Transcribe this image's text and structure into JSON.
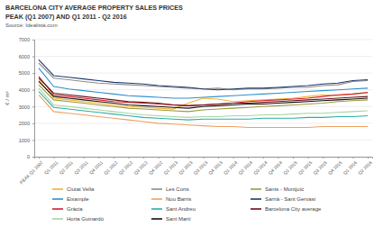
{
  "chart_data": {
    "type": "line",
    "title": "BARCELONA CITY AVERAGE PROPERTY SALES PRICES",
    "subtitle": "PEAK (Q1 2007) AND Q1 2011 - Q2 2016",
    "source": "Source: Idealista.com",
    "y_label": "€ / m²",
    "categories": [
      "PEAK Q1 2007",
      "Q1 2011",
      "Q2 2011",
      "Q3 2011",
      "Q4 2011",
      "Q1 2012",
      "Q2 2012",
      "Q3 2012",
      "Q4 2012",
      "Q1 2013",
      "Q2 2013",
      "Q3 2013",
      "Q4 2013",
      "Q1 2014",
      "Q2 2014",
      "Q3 2014",
      "Q4 2014",
      "Q1 2015",
      "Q2 2015",
      "Q3 2015",
      "Q4 2015",
      "Q1 2016",
      "Q2 2016"
    ],
    "series": [
      {
        "name": "Ciutat Vella",
        "color": "#f2b232",
        "values": [
          4600,
          3500,
          3400,
          3300,
          3200,
          3100,
          3000,
          2950,
          2900,
          2850,
          3200,
          3500,
          3450,
          3300,
          3350,
          3400,
          3450,
          3500,
          3600,
          3700,
          3650,
          3750,
          3800
        ]
      },
      {
        "name": "Les Corts",
        "color": "#8c8c8c",
        "values": [
          5600,
          4700,
          4600,
          4500,
          4400,
          4350,
          4300,
          4250,
          4200,
          4150,
          4100,
          4050,
          4100,
          4000,
          4050,
          4050,
          4100,
          4150,
          4150,
          4250,
          4300,
          4500,
          4550
        ]
      },
      {
        "name": "Sants - Montjuïc",
        "color": "#9c9a3c",
        "values": [
          4300,
          3400,
          3300,
          3200,
          3100,
          3000,
          2900,
          2850,
          2800,
          2750,
          2700,
          2800,
          2850,
          2900,
          2950,
          3000,
          3050,
          3100,
          3150,
          3200,
          3300,
          3350,
          3400
        ]
      },
      {
        "name": "Eixample",
        "color": "#2f8fce",
        "values": [
          5300,
          4200,
          4050,
          3950,
          3850,
          3750,
          3650,
          3600,
          3550,
          3500,
          3500,
          3550,
          3600,
          3650,
          3700,
          3750,
          3800,
          3850,
          3900,
          3950,
          4000,
          4050,
          4100
        ]
      },
      {
        "name": "Nou Barris",
        "color": "#f0a060",
        "values": [
          3700,
          2700,
          2600,
          2500,
          2400,
          2300,
          2200,
          2100,
          2000,
          1950,
          1900,
          1850,
          1800,
          1800,
          1750,
          1750,
          1750,
          1750,
          1750,
          1800,
          1800,
          1800,
          1800
        ]
      },
      {
        "name": "Sarrià - Sant Gervasi",
        "color": "#1f3a6e",
        "values": [
          5800,
          4850,
          4750,
          4650,
          4550,
          4450,
          4400,
          4350,
          4250,
          4200,
          4150,
          4050,
          4000,
          4050,
          4100,
          4100,
          4150,
          4200,
          4250,
          4350,
          4400,
          4550,
          4600
        ]
      },
      {
        "name": "Gràcia",
        "color": "#d0202e",
        "values": [
          4800,
          3700,
          3600,
          3500,
          3400,
          3300,
          3250,
          3200,
          3150,
          3100,
          3050,
          3100,
          3150,
          3200,
          3300,
          3350,
          3400,
          3450,
          3500,
          3600,
          3700,
          3750,
          3850
        ]
      },
      {
        "name": "Sant Andreu",
        "color": "#2ab0a8",
        "values": [
          3900,
          2950,
          2850,
          2750,
          2650,
          2550,
          2450,
          2350,
          2300,
          2250,
          2200,
          2250,
          2250,
          2250,
          2250,
          2300,
          2300,
          2300,
          2350,
          2350,
          2400,
          2400,
          2450
        ]
      },
      {
        "name": "Barcelona City average",
        "color": "#6b0f1a",
        "values": [
          4700,
          3800,
          3700,
          3600,
          3500,
          3400,
          3300,
          3250,
          3200,
          3100,
          3050,
          3100,
          3150,
          3200,
          3200,
          3250,
          3300,
          3350,
          3400,
          3450,
          3500,
          3550,
          3600
        ]
      },
      {
        "name": "Horta Guinardó",
        "color": "#a8d4a0",
        "values": [
          4100,
          3100,
          3000,
          2900,
          2800,
          2700,
          2600,
          2500,
          2450,
          2400,
          2350,
          2400,
          2400,
          2450,
          2450,
          2500,
          2500,
          2550,
          2600,
          2600,
          2650,
          2700,
          2750
        ]
      },
      {
        "name": "Sant Martí",
        "color": "#111111",
        "values": [
          4500,
          3600,
          3500,
          3400,
          3300,
          3200,
          3100,
          3050,
          3000,
          2950,
          2900,
          3000,
          3050,
          3100,
          3150,
          3150,
          3200,
          3250,
          3300,
          3350,
          3400,
          3450,
          3500
        ]
      }
    ],
    "ylim": [
      0,
      7000
    ],
    "yticks": [
      0,
      1000,
      2000,
      3000,
      4000,
      5000,
      6000,
      7000
    ],
    "grid": true,
    "legend": "bottom"
  }
}
